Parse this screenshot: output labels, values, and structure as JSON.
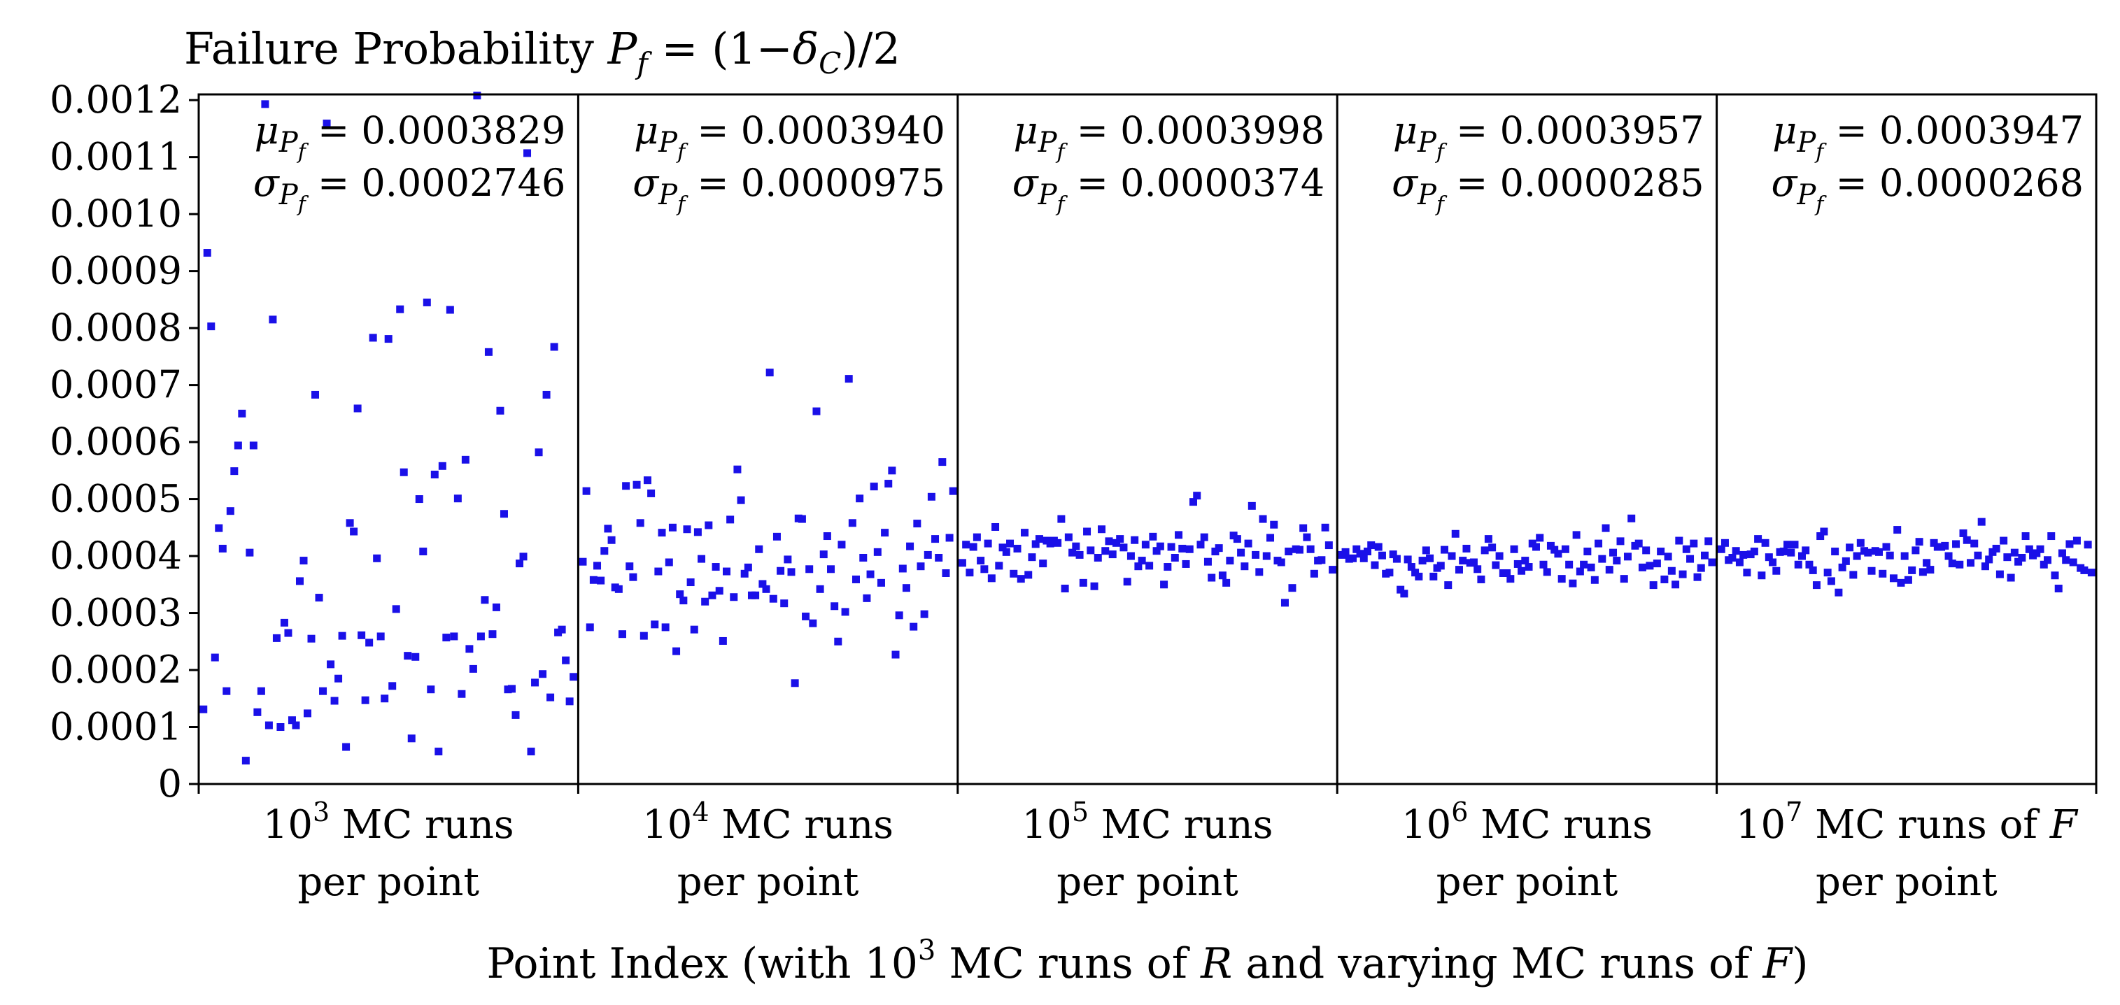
{
  "chart_data": {
    "type": "scatter",
    "title_parts": [
      "Failure Probability ",
      "P",
      "f",
      " = (1−",
      "δ",
      "C",
      ")/2"
    ],
    "xlabel_parts": [
      "Point Index (with 10",
      "3",
      " MC runs of ",
      "R",
      "  and varying MC runs of ",
      "F",
      ")"
    ],
    "ylabel": "",
    "ylim": [
      0,
      0.00121
    ],
    "yticks": [
      "0",
      "0.0001",
      "0.0002",
      "0.0003",
      "0.0004",
      "0.0005",
      "0.0006",
      "0.0007",
      "0.0008",
      "0.0009",
      "0.0010",
      "0.0011",
      "0.0012"
    ],
    "ytick_values": [
      0,
      0.0001,
      0.0002,
      0.0003,
      0.0004,
      0.0005,
      0.0006,
      0.0007,
      0.0008,
      0.0009,
      0.001,
      0.0011,
      0.0012
    ],
    "marker_color": "#1a10e8",
    "axis_color": "#000000",
    "mu_symbol": "μ",
    "sigma_symbol": "σ",
    "stat_sub_p": "P",
    "stat_sub_f": "f",
    "groups": [
      {
        "exp": "3",
        "line1_rest": " MC runs",
        "line1_tail": "",
        "line2": "per point",
        "mu": "= 0.0003829",
        "sigma": "= 0.0002746",
        "values": [
          0.000131,
          0.000932,
          0.000803,
          0.000222,
          0.000449,
          0.000413,
          0.000163,
          0.000479,
          0.000549,
          0.000594,
          0.00065,
          4.1e-05,
          0.000406,
          0.000594,
          0.000126,
          0.000163,
          0.001193,
          0.000103,
          0.000815,
          0.000256,
          0.0001,
          0.000283,
          0.000265,
          0.000112,
          0.000103,
          0.000356,
          0.000392,
          0.000124,
          0.000255,
          0.000683,
          0.000327,
          0.000163,
          0.001159,
          0.00021,
          0.000146,
          0.000185,
          0.00026,
          6.5e-05,
          0.000458,
          0.000443,
          0.000659,
          0.000261,
          0.000147,
          0.000248,
          0.000783,
          0.000396,
          0.000259,
          0.00015,
          0.000781,
          0.000172,
          0.000307,
          0.000833,
          0.000547,
          0.000225,
          8e-05,
          0.000223,
          0.0005,
          0.000408,
          0.000845,
          0.000166,
          0.000543,
          5.7e-05,
          0.000558,
          0.000257,
          0.000832,
          0.000259,
          0.000501,
          0.000158,
          0.000569,
          0.000237,
          0.000202,
          0.001208,
          0.000259,
          0.000323,
          0.000758,
          0.000263,
          0.00031,
          0.000655,
          0.000474,
          0.000166,
          0.000167,
          0.000121,
          0.000387,
          0.000399,
          0.001107,
          5.7e-05,
          0.000178,
          0.000582,
          0.000193,
          0.000683,
          0.000152,
          0.000767,
          0.000266,
          0.000271,
          0.000217,
          0.000145,
          0.000188
        ]
      },
      {
        "exp": "4",
        "line1_rest": " MC runs",
        "line1_tail": "",
        "line2": "per point",
        "mu": "= 0.0003940",
        "sigma": "= 0.0000975",
        "values": [
          0.00039,
          0.000514,
          0.000275,
          0.000358,
          0.000383,
          0.000357,
          0.000409,
          0.000448,
          0.000428,
          0.000345,
          0.000342,
          0.000263,
          0.000523,
          0.000382,
          0.000363,
          0.000525,
          0.000458,
          0.00026,
          0.000533,
          0.00051,
          0.00028,
          0.000373,
          0.000441,
          0.000275,
          0.000389,
          0.00045,
          0.000233,
          0.000333,
          0.000322,
          0.000447,
          0.000354,
          0.000271,
          0.000442,
          0.000395,
          0.00032,
          0.000454,
          0.000331,
          0.000381,
          0.000339,
          0.000251,
          0.000373,
          0.000464,
          0.000328,
          0.000552,
          0.000498,
          0.000369,
          0.00038,
          0.000331,
          0.000331,
          0.000412,
          0.000351,
          0.000342,
          0.000722,
          0.000325,
          0.000434,
          0.000374,
          0.000317,
          0.000394,
          0.000372,
          0.000177,
          0.000466,
          0.000465,
          0.000294,
          0.000377,
          0.000282,
          0.000654,
          0.000342,
          0.000403,
          0.000435,
          0.000377,
          0.000312,
          0.00025,
          0.00042,
          0.000302,
          0.000711,
          0.000458,
          0.000359,
          0.000501,
          0.000397,
          0.000326,
          0.000368,
          0.000522,
          0.000407,
          0.000353,
          0.000441,
          0.000527,
          0.00055,
          0.000227,
          0.000296,
          0.000378,
          0.000344,
          0.000417,
          0.000276,
          0.000457,
          0.000382,
          0.000298,
          0.000402,
          0.000504,
          0.00043,
          0.000397,
          0.000565,
          0.00037,
          0.000432,
          0.000514
        ]
      },
      {
        "exp": "5",
        "line1_rest": " MC runs",
        "line1_tail": "",
        "line2": "per point",
        "mu": "= 0.0003998",
        "sigma": "= 0.0000374",
        "values": [
          0.000388,
          0.00042,
          0.000371,
          0.000416,
          0.000433,
          0.000392,
          0.000377,
          0.000422,
          0.000361,
          0.000451,
          0.000383,
          0.000415,
          0.000407,
          0.000422,
          0.000369,
          0.000413,
          0.00036,
          0.000441,
          0.000367,
          0.000398,
          0.000421,
          0.00043,
          0.000387,
          0.000427,
          0.000422,
          0.000427,
          0.000423,
          0.000465,
          0.000343,
          0.000433,
          0.000406,
          0.000417,
          0.000402,
          0.000353,
          0.000443,
          0.00041,
          0.000347,
          0.000397,
          0.000447,
          0.000409,
          0.000426,
          0.000403,
          0.000423,
          0.00043,
          0.000415,
          0.000355,
          0.0004,
          0.000428,
          0.000382,
          0.000392,
          0.00042,
          0.000383,
          0.000434,
          0.000409,
          0.000417,
          0.00035,
          0.000381,
          0.000416,
          0.000397,
          0.000437,
          0.000413,
          0.000386,
          0.000412,
          0.000495,
          0.000506,
          0.00042,
          0.000433,
          0.00039,
          0.000362,
          0.000408,
          0.000414,
          0.000366,
          0.000353,
          0.000392,
          0.000436,
          0.00043,
          0.000406,
          0.000382,
          0.000422,
          0.000488,
          0.000402,
          0.000372,
          0.000465,
          0.0004,
          0.000432,
          0.000455,
          0.000392,
          0.000389,
          0.000318,
          0.000408,
          0.000344,
          0.000412,
          0.000411,
          0.000449,
          0.000433,
          0.000412,
          0.000369,
          0.000392,
          0.000393,
          0.00045,
          0.000419,
          0.000376
        ]
      },
      {
        "exp": "6",
        "line1_rest": " MC runs",
        "line1_tail": "",
        "line2": "per point",
        "mu": "= 0.0003957",
        "sigma": "= 0.0000285",
        "values": [
          0.000402,
          0.000407,
          0.000395,
          0.000396,
          0.000412,
          0.000404,
          0.000396,
          0.000408,
          0.000419,
          0.000384,
          0.000416,
          0.000401,
          0.000369,
          0.000371,
          0.000403,
          0.000395,
          0.000341,
          0.000334,
          0.000394,
          0.000381,
          0.000371,
          0.000364,
          0.000392,
          0.00041,
          0.000396,
          0.000364,
          0.000379,
          0.000383,
          0.000411,
          0.000349,
          0.0004,
          0.000439,
          0.000376,
          0.000392,
          0.000413,
          0.000388,
          0.000389,
          0.000377,
          0.000359,
          0.00041,
          0.00043,
          0.000415,
          0.000384,
          0.0004,
          0.00037,
          0.00037,
          0.00036,
          0.000412,
          0.000386,
          0.000374,
          0.000392,
          0.000381,
          0.000422,
          0.000416,
          0.000432,
          0.000385,
          0.000372,
          0.000418,
          0.000411,
          0.000404,
          0.00036,
          0.000412,
          0.000385,
          0.000352,
          0.000437,
          0.000373,
          0.000385,
          0.000408,
          0.00038,
          0.000358,
          0.000422,
          0.000395,
          0.000449,
          0.000376,
          0.000406,
          0.000392,
          0.000426,
          0.00036,
          0.000399,
          0.000466,
          0.000418,
          0.000422,
          0.00038,
          0.00041,
          0.000383,
          0.000349,
          0.000387,
          0.000408,
          0.000359,
          0.000399,
          0.000374,
          0.00035,
          0.000427,
          0.000368,
          0.000412,
          0.000395,
          0.000422,
          0.000363,
          0.000379,
          0.000401,
          0.000426,
          0.000389
        ]
      },
      {
        "exp": "7",
        "line1_rest": " MC runs of ",
        "line1_tail": "F",
        "line2": "per point",
        "mu": "= 0.0003947",
        "sigma": "= 0.0000268",
        "values": [
          0.000412,
          0.000423,
          0.000393,
          0.000397,
          0.000409,
          0.000389,
          0.000402,
          0.000371,
          0.000403,
          0.000408,
          0.00043,
          0.000366,
          0.000423,
          0.000398,
          0.000389,
          0.000374,
          0.000407,
          0.000408,
          0.00042,
          0.000406,
          0.00042,
          0.000385,
          0.0004,
          0.00041,
          0.000385,
          0.000375,
          0.000349,
          0.000435,
          0.000443,
          0.000371,
          0.000356,
          0.000408,
          0.000336,
          0.00038,
          0.000391,
          0.000415,
          0.000367,
          0.0004,
          0.000423,
          0.000409,
          0.000406,
          0.000374,
          0.000409,
          0.000407,
          0.000369,
          0.000416,
          0.000401,
          0.000361,
          0.000446,
          0.000353,
          0.0004,
          0.000358,
          0.000375,
          0.00041,
          0.000425,
          0.000372,
          0.000388,
          0.000376,
          0.000423,
          0.000416,
          0.000416,
          0.000418,
          0.0004,
          0.000387,
          0.000421,
          0.000385,
          0.00044,
          0.000428,
          0.000388,
          0.000422,
          0.000401,
          0.00046,
          0.000382,
          0.000394,
          0.000407,
          0.000413,
          0.000368,
          0.000427,
          0.000398,
          0.000362,
          0.000406,
          0.00039,
          0.000397,
          0.000435,
          0.000412,
          0.000401,
          0.000405,
          0.000412,
          0.000385,
          0.000393,
          0.000435,
          0.000366,
          0.000343,
          0.000405,
          0.000393,
          0.000421,
          0.000389,
          0.000427,
          0.000379,
          0.000375,
          0.00042,
          0.000371
        ]
      }
    ]
  }
}
